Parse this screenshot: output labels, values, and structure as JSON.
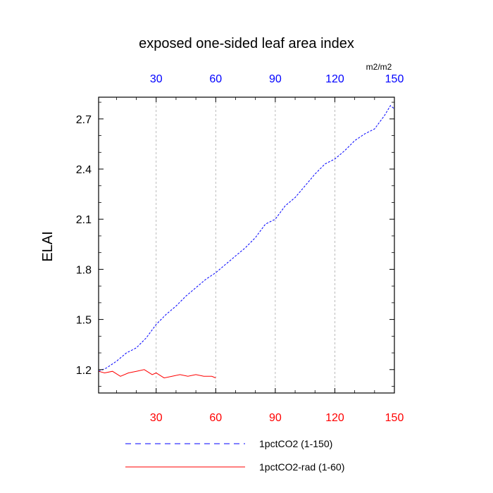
{
  "chart_data": {
    "type": "line",
    "title": "exposed one-sided leaf area index",
    "ylabel": "ELAI",
    "units": "m2/m2",
    "xlim": [
      1,
      150
    ],
    "ylim": [
      1.06,
      2.83
    ],
    "grid": "vertical-dashed",
    "bottom_ticks": {
      "labels": [
        "30",
        "60",
        "90",
        "120",
        "150"
      ],
      "values": [
        30,
        60,
        90,
        120,
        150
      ],
      "color": "#ff0000"
    },
    "top_ticks": {
      "labels": [
        "30",
        "60",
        "90",
        "120",
        "150"
      ],
      "values": [
        30,
        60,
        90,
        120,
        150
      ],
      "color": "#0000ff"
    },
    "y_ticks": {
      "labels": [
        "1.2",
        "1.5",
        "1.8",
        "2.1",
        "2.4",
        "2.7"
      ],
      "values": [
        1.2,
        1.5,
        1.8,
        2.1,
        2.4,
        2.7
      ]
    },
    "legend": {
      "placement": "bottom"
    },
    "series": [
      {
        "name": "1pctCO2 (1-150)",
        "color": "#0000ff",
        "dash": "dashed",
        "x": [
          1,
          5,
          10,
          15,
          20,
          25,
          30,
          35,
          40,
          45,
          50,
          55,
          60,
          65,
          70,
          75,
          80,
          85,
          90,
          95,
          100,
          105,
          110,
          115,
          120,
          125,
          130,
          135,
          140,
          145,
          148,
          150
        ],
        "y": [
          1.19,
          1.21,
          1.25,
          1.3,
          1.33,
          1.39,
          1.47,
          1.53,
          1.58,
          1.64,
          1.69,
          1.74,
          1.78,
          1.83,
          1.88,
          1.93,
          1.99,
          2.07,
          2.1,
          2.18,
          2.23,
          2.3,
          2.37,
          2.43,
          2.46,
          2.51,
          2.57,
          2.61,
          2.64,
          2.72,
          2.78,
          2.76
        ]
      },
      {
        "name": "1pctCO2-rad (1-60)",
        "color": "#ff0000",
        "dash": "solid",
        "x": [
          1,
          4,
          8,
          12,
          16,
          20,
          24,
          28,
          30,
          34,
          38,
          42,
          46,
          50,
          54,
          58,
          60
        ],
        "y": [
          1.19,
          1.18,
          1.19,
          1.16,
          1.18,
          1.19,
          1.2,
          1.17,
          1.18,
          1.15,
          1.16,
          1.17,
          1.16,
          1.17,
          1.16,
          1.16,
          1.15
        ]
      }
    ]
  }
}
